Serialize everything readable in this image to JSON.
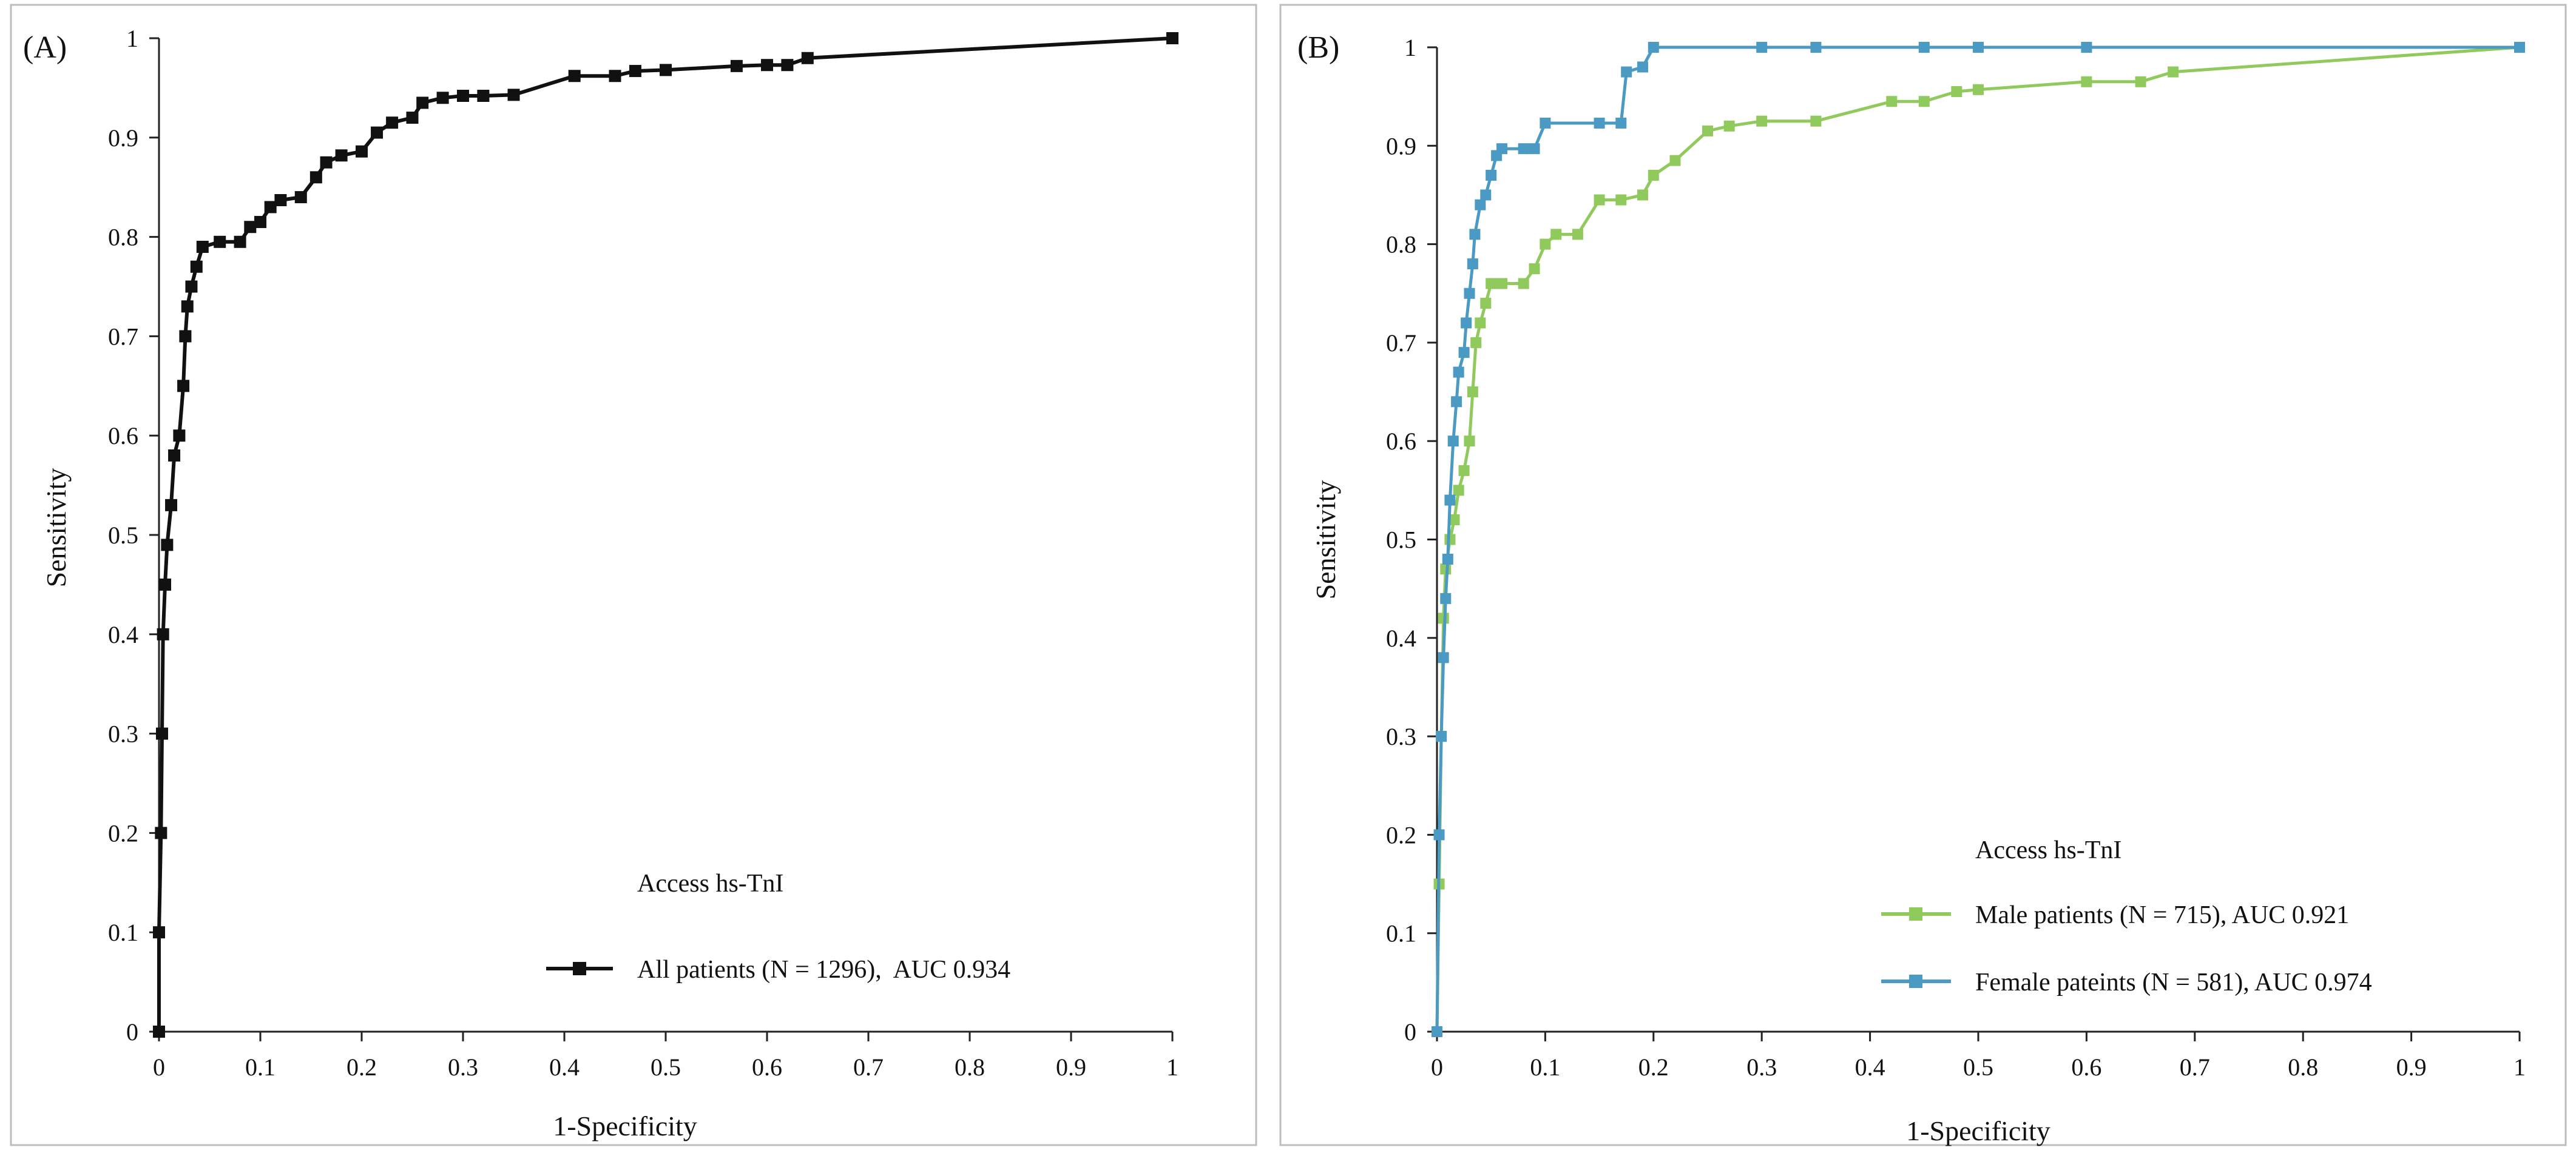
{
  "figure": {
    "colors": {
      "all": "#111111",
      "male": "#90c95c",
      "female": "#4a9ac4",
      "frame": "#bdbdbd"
    }
  },
  "chart_data": [
    {
      "type": "line",
      "panel_label": "(A)",
      "xlabel": "1-Specificity",
      "ylabel": "Sensitivity",
      "xlim": [
        0,
        1
      ],
      "ylim": [
        0,
        1
      ],
      "x_ticks": [
        "0",
        "0.1",
        "0.2",
        "0.3",
        "0.4",
        "0.5",
        "0.6",
        "0.7",
        "0.8",
        "0.9",
        "1"
      ],
      "y_ticks": [
        "0",
        "0.1",
        "0.2",
        "0.3",
        "0.4",
        "0.5",
        "0.6",
        "0.7",
        "0.8",
        "0.9",
        "1"
      ],
      "legend_title": "Access hs-TnI",
      "legend_position": "bottom-right",
      "grid": false,
      "series": [
        {
          "name": "All patients (N = 1296),  AUC 0.934",
          "color": "#111111",
          "marker": "square",
          "points": [
            [
              0,
              0
            ],
            [
              0,
              0.1
            ],
            [
              0.002,
              0.2
            ],
            [
              0.003,
              0.3
            ],
            [
              0.004,
              0.4
            ],
            [
              0.006,
              0.45
            ],
            [
              0.008,
              0.49
            ],
            [
              0.012,
              0.53
            ],
            [
              0.015,
              0.58
            ],
            [
              0.02,
              0.6
            ],
            [
              0.024,
              0.65
            ],
            [
              0.026,
              0.7
            ],
            [
              0.028,
              0.73
            ],
            [
              0.032,
              0.75
            ],
            [
              0.037,
              0.77
            ],
            [
              0.043,
              0.79
            ],
            [
              0.06,
              0.795
            ],
            [
              0.08,
              0.795
            ],
            [
              0.09,
              0.81
            ],
            [
              0.1,
              0.815
            ],
            [
              0.11,
              0.83
            ],
            [
              0.12,
              0.837
            ],
            [
              0.14,
              0.84
            ],
            [
              0.155,
              0.86
            ],
            [
              0.165,
              0.875
            ],
            [
              0.18,
              0.882
            ],
            [
              0.2,
              0.886
            ],
            [
              0.215,
              0.905
            ],
            [
              0.23,
              0.915
            ],
            [
              0.25,
              0.92
            ],
            [
              0.26,
              0.935
            ],
            [
              0.28,
              0.94
            ],
            [
              0.3,
              0.942
            ],
            [
              0.32,
              0.942
            ],
            [
              0.35,
              0.943
            ],
            [
              0.41,
              0.962
            ],
            [
              0.45,
              0.962
            ],
            [
              0.47,
              0.967
            ],
            [
              0.5,
              0.968
            ],
            [
              0.57,
              0.972
            ],
            [
              0.6,
              0.973
            ],
            [
              0.62,
              0.973
            ],
            [
              0.64,
              0.98
            ],
            [
              1,
              1
            ]
          ]
        }
      ]
    },
    {
      "type": "line",
      "panel_label": "(B)",
      "xlabel": "1-Specificity",
      "ylabel": "Sensitivity",
      "xlim": [
        0,
        1
      ],
      "ylim": [
        0,
        1
      ],
      "x_ticks": [
        "0",
        "0.1",
        "0.2",
        "0.3",
        "0.4",
        "0.5",
        "0.6",
        "0.7",
        "0.8",
        "0.9",
        "1"
      ],
      "y_ticks": [
        "0",
        "0.1",
        "0.2",
        "0.3",
        "0.4",
        "0.5",
        "0.6",
        "0.7",
        "0.8",
        "0.9",
        "1"
      ],
      "legend_title": "Access hs-TnI",
      "legend_position": "bottom-right",
      "grid": false,
      "series": [
        {
          "name": "Male patients (N = 715), AUC 0.921",
          "color": "#90c95c",
          "marker": "square",
          "points": [
            [
              0,
              0
            ],
            [
              0.002,
              0.15
            ],
            [
              0.004,
              0.3
            ],
            [
              0.006,
              0.42
            ],
            [
              0.008,
              0.47
            ],
            [
              0.012,
              0.5
            ],
            [
              0.016,
              0.52
            ],
            [
              0.02,
              0.55
            ],
            [
              0.025,
              0.57
            ],
            [
              0.03,
              0.6
            ],
            [
              0.033,
              0.65
            ],
            [
              0.036,
              0.7
            ],
            [
              0.04,
              0.72
            ],
            [
              0.045,
              0.74
            ],
            [
              0.05,
              0.76
            ],
            [
              0.06,
              0.76
            ],
            [
              0.08,
              0.76
            ],
            [
              0.09,
              0.775
            ],
            [
              0.1,
              0.8
            ],
            [
              0.11,
              0.81
            ],
            [
              0.13,
              0.81
            ],
            [
              0.15,
              0.845
            ],
            [
              0.17,
              0.845
            ],
            [
              0.19,
              0.85
            ],
            [
              0.2,
              0.87
            ],
            [
              0.22,
              0.885
            ],
            [
              0.25,
              0.915
            ],
            [
              0.27,
              0.92
            ],
            [
              0.3,
              0.925
            ],
            [
              0.35,
              0.925
            ],
            [
              0.42,
              0.945
            ],
            [
              0.45,
              0.945
            ],
            [
              0.48,
              0.955
            ],
            [
              0.5,
              0.957
            ],
            [
              0.6,
              0.965
            ],
            [
              0.65,
              0.965
            ],
            [
              0.68,
              0.975
            ],
            [
              1,
              1
            ]
          ]
        },
        {
          "name": "Female pateints (N = 581), AUC 0.974",
          "color": "#4a9ac4",
          "marker": "square",
          "points": [
            [
              0,
              0
            ],
            [
              0.002,
              0.2
            ],
            [
              0.004,
              0.3
            ],
            [
              0.006,
              0.38
            ],
            [
              0.008,
              0.44
            ],
            [
              0.01,
              0.48
            ],
            [
              0.012,
              0.54
            ],
            [
              0.015,
              0.6
            ],
            [
              0.018,
              0.64
            ],
            [
              0.02,
              0.67
            ],
            [
              0.025,
              0.69
            ],
            [
              0.027,
              0.72
            ],
            [
              0.03,
              0.75
            ],
            [
              0.033,
              0.78
            ],
            [
              0.035,
              0.81
            ],
            [
              0.04,
              0.84
            ],
            [
              0.045,
              0.85
            ],
            [
              0.05,
              0.87
            ],
            [
              0.055,
              0.89
            ],
            [
              0.06,
              0.897
            ],
            [
              0.08,
              0.897
            ],
            [
              0.09,
              0.897
            ],
            [
              0.1,
              0.923
            ],
            [
              0.15,
              0.923
            ],
            [
              0.17,
              0.923
            ],
            [
              0.175,
              0.975
            ],
            [
              0.19,
              0.98
            ],
            [
              0.2,
              1
            ],
            [
              0.3,
              1
            ],
            [
              0.35,
              1
            ],
            [
              0.45,
              1
            ],
            [
              0.5,
              1
            ],
            [
              0.6,
              1
            ],
            [
              1,
              1
            ]
          ]
        }
      ]
    }
  ]
}
